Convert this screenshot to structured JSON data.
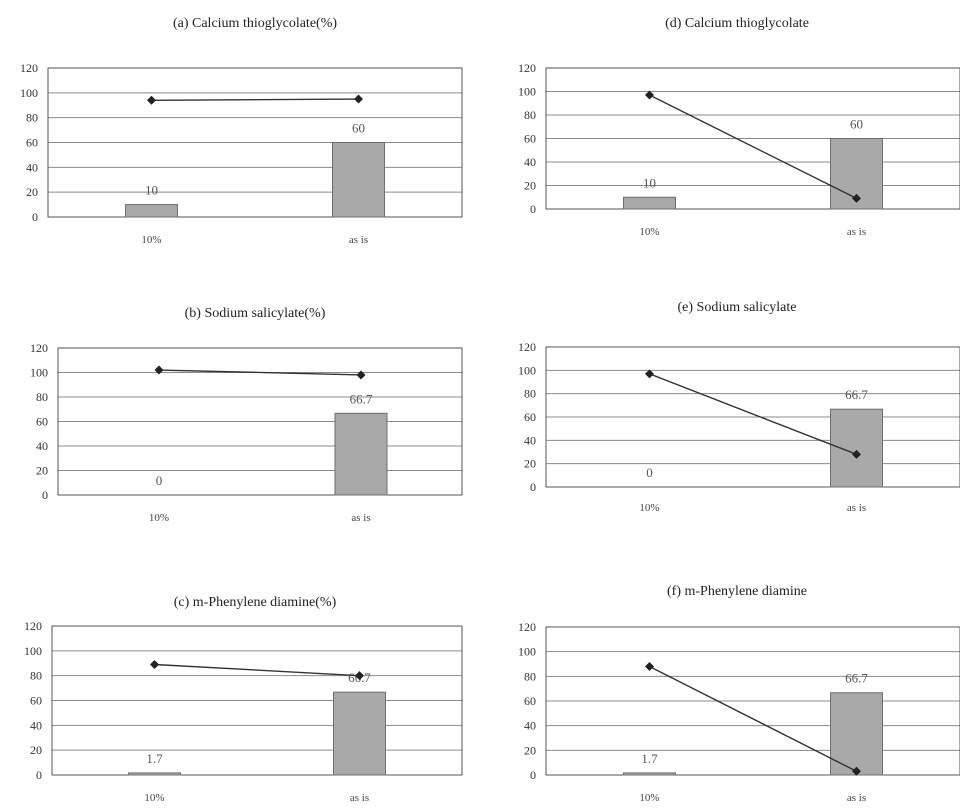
{
  "chart_data": [
    {
      "type": "bar",
      "title": "(a) Calcium thioglycolate(%)",
      "categories": [
        "10%",
        "as is"
      ],
      "yticks": [
        0,
        20,
        40,
        60,
        80,
        100,
        120
      ],
      "ylim": [
        0,
        120
      ],
      "grid": true,
      "series": [
        {
          "kind": "bar",
          "values": [
            10,
            60
          ],
          "data_labels": [
            "10",
            "60"
          ]
        },
        {
          "kind": "line",
          "marker": "diamond",
          "values": [
            94,
            95
          ]
        }
      ]
    },
    {
      "type": "bar",
      "title": "(b) Sodium salicylate(%)",
      "categories": [
        "10%",
        "as is"
      ],
      "yticks": [
        0,
        20,
        40,
        60,
        80,
        100,
        120
      ],
      "ylim": [
        0,
        120
      ],
      "grid": true,
      "series": [
        {
          "kind": "bar",
          "values": [
            0,
            66.7
          ],
          "data_labels": [
            "0",
            "66.7"
          ]
        },
        {
          "kind": "line",
          "marker": "diamond",
          "values": [
            102,
            98
          ]
        }
      ]
    },
    {
      "type": "bar",
      "title": "(c) m-Phenylene diamine(%)",
      "categories": [
        "10%",
        "as is"
      ],
      "yticks": [
        0,
        20,
        40,
        60,
        80,
        100,
        120
      ],
      "ylim": [
        0,
        120
      ],
      "grid": true,
      "series": [
        {
          "kind": "bar",
          "values": [
            1.7,
            66.7
          ],
          "data_labels": [
            "1.7",
            "66.7"
          ]
        },
        {
          "kind": "line",
          "marker": "diamond",
          "values": [
            89,
            80
          ]
        }
      ]
    },
    {
      "type": "bar",
      "title": "(d) Calcium thioglycolate",
      "categories": [
        "10%",
        "as is"
      ],
      "yticks": [
        0,
        20,
        40,
        60,
        80,
        100,
        120
      ],
      "ylim": [
        0,
        120
      ],
      "grid": true,
      "series": [
        {
          "kind": "bar",
          "values": [
            10,
            60
          ],
          "data_labels": [
            "10",
            "60"
          ]
        },
        {
          "kind": "line",
          "marker": "diamond",
          "values": [
            97,
            9
          ]
        }
      ]
    },
    {
      "type": "bar",
      "title": "(e) Sodium salicylate",
      "categories": [
        "10%",
        "as is"
      ],
      "yticks": [
        0,
        20,
        40,
        60,
        80,
        100,
        120
      ],
      "ylim": [
        0,
        120
      ],
      "grid": true,
      "series": [
        {
          "kind": "bar",
          "values": [
            0,
            66.7
          ],
          "data_labels": [
            "0",
            "66.7"
          ]
        },
        {
          "kind": "line",
          "marker": "diamond",
          "values": [
            97,
            28
          ]
        }
      ]
    },
    {
      "type": "bar",
      "title": "(f) m-Phenylene diamine",
      "categories": [
        "10%",
        "as is"
      ],
      "yticks": [
        0,
        20,
        40,
        60,
        80,
        100,
        120
      ],
      "ylim": [
        0,
        120
      ],
      "grid": true,
      "series": [
        {
          "kind": "bar",
          "values": [
            1.7,
            66.7
          ],
          "data_labels": [
            "1.7",
            "66.7"
          ]
        },
        {
          "kind": "line",
          "marker": "diamond",
          "values": [
            88,
            3
          ]
        }
      ]
    }
  ]
}
